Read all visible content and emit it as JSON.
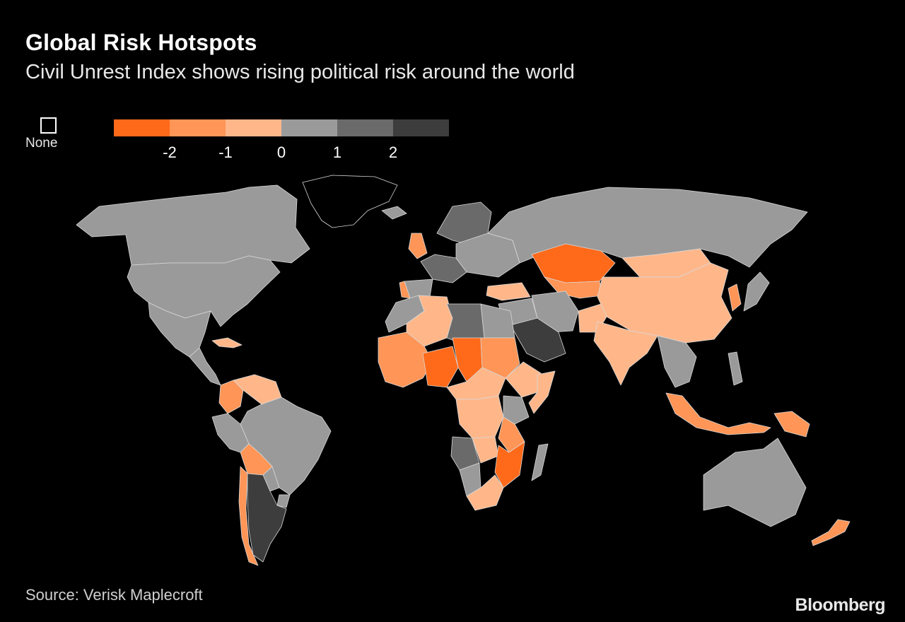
{
  "header": {
    "title": "Global Risk Hotspots",
    "subtitle": "Civil Unrest Index shows rising political risk around the world"
  },
  "legend": {
    "none_label": "None",
    "bins": [
      {
        "color": "#ff6a1a"
      },
      {
        "color": "#ff9556"
      },
      {
        "color": "#ffb78a"
      },
      {
        "color": "#9a9a9a"
      },
      {
        "color": "#6a6a6a"
      },
      {
        "color": "#3d3d3d"
      }
    ],
    "ticks": [
      "-2",
      "-1",
      "0",
      "1",
      "2"
    ]
  },
  "footer": {
    "source": "Source: Verisk Maplecroft",
    "brand": "Bloomberg"
  },
  "map_colors": {
    "background": "#000000",
    "border": "#d8d8d8",
    "level_neg2": "#ff6a1a",
    "level_neg1": "#ff9556",
    "level_0": "#ffb78a",
    "level_1": "#9a9a9a",
    "level_2": "#6a6a6a",
    "level_3": "#3d3d3d",
    "none": "#000000"
  },
  "regions": [
    {
      "name": "Canada",
      "level": "level_1"
    },
    {
      "name": "United States",
      "level": "level_1"
    },
    {
      "name": "Greenland",
      "level": "none"
    },
    {
      "name": "Mexico",
      "level": "level_1"
    },
    {
      "name": "Central America",
      "level": "level_1"
    },
    {
      "name": "Cuba",
      "level": "level_0"
    },
    {
      "name": "Colombia",
      "level": "level_neg1"
    },
    {
      "name": "Venezuela",
      "level": "level_0"
    },
    {
      "name": "Brazil",
      "level": "level_1"
    },
    {
      "name": "Peru",
      "level": "level_1"
    },
    {
      "name": "Bolivia",
      "level": "level_neg1"
    },
    {
      "name": "Chile",
      "level": "level_neg1"
    },
    {
      "name": "Argentina",
      "level": "level_3"
    },
    {
      "name": "Paraguay",
      "level": "level_1"
    },
    {
      "name": "Uruguay",
      "level": "level_1"
    },
    {
      "name": "United Kingdom",
      "level": "level_neg1"
    },
    {
      "name": "Iceland",
      "level": "level_1"
    },
    {
      "name": "Scandinavia",
      "level": "level_2"
    },
    {
      "name": "Western Europe",
      "level": "level_2"
    },
    {
      "name": "Spain",
      "level": "level_1"
    },
    {
      "name": "Portugal",
      "level": "level_neg1"
    },
    {
      "name": "Eastern Europe",
      "level": "level_1"
    },
    {
      "name": "Russia",
      "level": "level_1"
    },
    {
      "name": "Kazakhstan",
      "level": "level_neg2"
    },
    {
      "name": "Central Asia",
      "level": "level_neg1"
    },
    {
      "name": "Turkey",
      "level": "level_0"
    },
    {
      "name": "Iran",
      "level": "level_1"
    },
    {
      "name": "Saudi Arabia",
      "level": "level_3"
    },
    {
      "name": "Middle East",
      "level": "level_1"
    },
    {
      "name": "Pakistan",
      "level": "level_0"
    },
    {
      "name": "India",
      "level": "level_0"
    },
    {
      "name": "China",
      "level": "level_0"
    },
    {
      "name": "Mongolia",
      "level": "level_0"
    },
    {
      "name": "Japan",
      "level": "level_1"
    },
    {
      "name": "Korea",
      "level": "level_neg1"
    },
    {
      "name": "Southeast Asia",
      "level": "level_1"
    },
    {
      "name": "Indonesia",
      "level": "level_neg1"
    },
    {
      "name": "Papua New Guinea",
      "level": "level_neg1"
    },
    {
      "name": "Philippines",
      "level": "level_1"
    },
    {
      "name": "Australia",
      "level": "level_1"
    },
    {
      "name": "New Zealand",
      "level": "level_neg1"
    },
    {
      "name": "Morocco",
      "level": "level_1"
    },
    {
      "name": "Algeria",
      "level": "level_0"
    },
    {
      "name": "Libya",
      "level": "level_2"
    },
    {
      "name": "Egypt",
      "level": "level_1"
    },
    {
      "name": "West Africa",
      "level": "level_neg1"
    },
    {
      "name": "Nigeria",
      "level": "level_neg2"
    },
    {
      "name": "Chad",
      "level": "level_neg2"
    },
    {
      "name": "Sudan",
      "level": "level_neg1"
    },
    {
      "name": "Ethiopia",
      "level": "level_0"
    },
    {
      "name": "Somalia",
      "level": "level_0"
    },
    {
      "name": "Central Africa",
      "level": "level_0"
    },
    {
      "name": "DR Congo",
      "level": "level_0"
    },
    {
      "name": "Kenya",
      "level": "level_1"
    },
    {
      "name": "Tanzania",
      "level": "level_neg1"
    },
    {
      "name": "Angola",
      "level": "level_2"
    },
    {
      "name": "Zambia",
      "level": "level_0"
    },
    {
      "name": "Mozambique",
      "level": "level_neg2"
    },
    {
      "name": "Namibia",
      "level": "level_1"
    },
    {
      "name": "South Africa",
      "level": "level_0"
    },
    {
      "name": "Madagascar",
      "level": "level_1"
    }
  ]
}
